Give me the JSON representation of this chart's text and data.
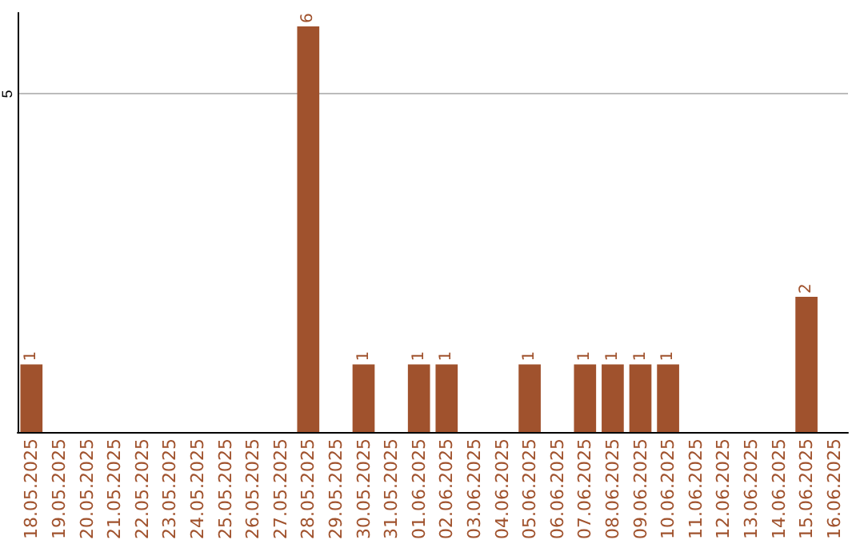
{
  "chart_data": {
    "type": "bar",
    "categories": [
      "18.05.2025",
      "19.05.2025",
      "20.05.2025",
      "21.05.2025",
      "22.05.2025",
      "23.05.2025",
      "24.05.2025",
      "25.05.2025",
      "26.05.2025",
      "27.05.2025",
      "28.05.2025",
      "29.05.2025",
      "30.05.2025",
      "31.05.2025",
      "01.06.2025",
      "02.06.2025",
      "03.06.2025",
      "04.06.2025",
      "05.06.2025",
      "06.06.2025",
      "07.06.2025",
      "08.06.2025",
      "09.06.2025",
      "10.06.2025",
      "11.06.2025",
      "12.06.2025",
      "13.06.2025",
      "14.06.2025",
      "15.06.2025",
      "16.06.2025"
    ],
    "values": [
      1,
      0,
      0,
      0,
      0,
      0,
      0,
      0,
      0,
      0,
      6,
      0,
      1,
      0,
      1,
      1,
      0,
      0,
      1,
      0,
      1,
      1,
      1,
      1,
      0,
      0,
      0,
      0,
      2,
      0
    ],
    "value_labels": [
      "1",
      null,
      null,
      null,
      null,
      null,
      null,
      null,
      null,
      null,
      "6",
      null,
      "1",
      null,
      "1",
      "1",
      null,
      null,
      "1",
      null,
      "1",
      "1",
      "1",
      "1",
      null,
      null,
      null,
      null,
      "2",
      null
    ],
    "color": "#a0522d",
    "ylim": [
      0,
      6.2
    ],
    "yticks": [
      5
    ],
    "grid": "y"
  }
}
